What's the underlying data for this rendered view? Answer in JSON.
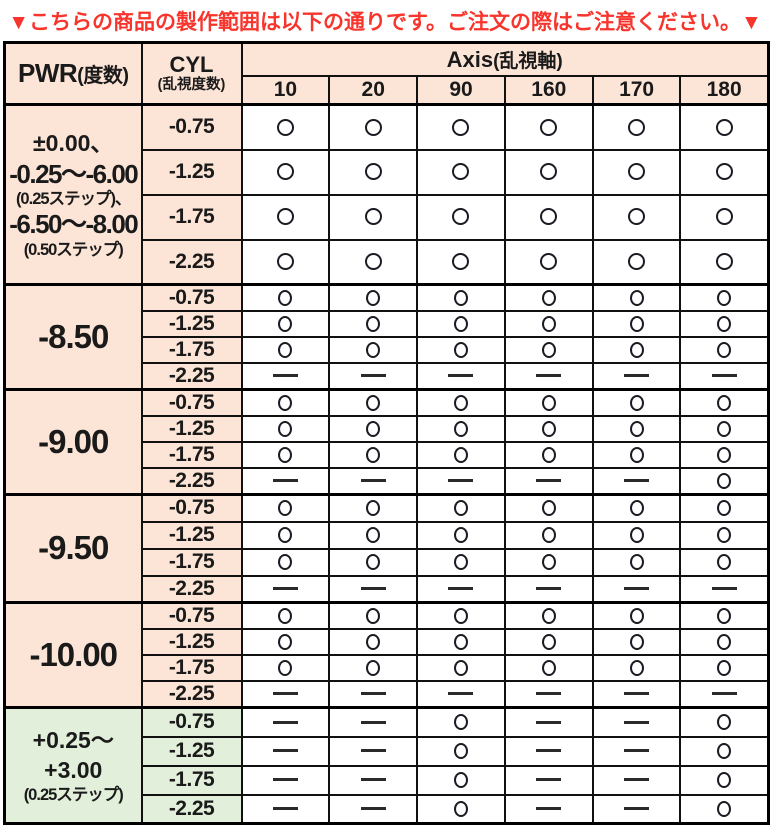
{
  "notice": {
    "text": "▼こちらの商品の製作範囲は以下の通りです。ご注文の際はご注意ください。▼",
    "color": "#f8352d"
  },
  "table": {
    "headers": {
      "pwr": "PWR",
      "pwr_sub": "(度数)",
      "cyl": "CYL",
      "cyl_sub": "(乱視度数)",
      "axis": "Axis",
      "axis_sub": "(乱視軸)"
    },
    "axis_values": [
      "10",
      "20",
      "90",
      "160",
      "170",
      "180"
    ],
    "symbols": {
      "available": "○",
      "unavailable": "—"
    },
    "groups": [
      {
        "theme": "peach",
        "row_class": "rh-g1",
        "pwr_lines": [
          {
            "text": "±0.00、",
            "size": "md"
          },
          {
            "text": "-0.25〜-6.00",
            "size": "lg"
          },
          {
            "text": "(0.25ステップ)、",
            "size": "sm"
          },
          {
            "text": "-6.50〜-8.00",
            "size": "lg"
          },
          {
            "text": "(0.50ステップ)",
            "size": "sm"
          }
        ],
        "rows": [
          {
            "cyl": "-0.75",
            "cells": [
              "o",
              "o",
              "o",
              "o",
              "o",
              "o"
            ]
          },
          {
            "cyl": "-1.25",
            "cells": [
              "o",
              "o",
              "o",
              "o",
              "o",
              "o"
            ]
          },
          {
            "cyl": "-1.75",
            "cells": [
              "o",
              "o",
              "o",
              "o",
              "o",
              "o"
            ]
          },
          {
            "cyl": "-2.25",
            "cells": [
              "o",
              "o",
              "o",
              "o",
              "o",
              "o"
            ]
          }
        ]
      },
      {
        "theme": "peach",
        "row_class": "rh-sm",
        "pwr_lines": [
          {
            "text": "-8.50",
            "size": "xl"
          }
        ],
        "rows": [
          {
            "cyl": "-0.75",
            "cells": [
              "o",
              "o",
              "o",
              "o",
              "o",
              "o"
            ]
          },
          {
            "cyl": "-1.25",
            "cells": [
              "o",
              "o",
              "o",
              "o",
              "o",
              "o"
            ]
          },
          {
            "cyl": "-1.75",
            "cells": [
              "o",
              "o",
              "o",
              "o",
              "o",
              "o"
            ]
          },
          {
            "cyl": "-2.25",
            "cells": [
              "-",
              "-",
              "-",
              "-",
              "-",
              "-"
            ]
          }
        ]
      },
      {
        "theme": "peach",
        "row_class": "rh-sm",
        "pwr_lines": [
          {
            "text": "-9.00",
            "size": "xl"
          }
        ],
        "rows": [
          {
            "cyl": "-0.75",
            "cells": [
              "o",
              "o",
              "o",
              "o",
              "o",
              "o"
            ]
          },
          {
            "cyl": "-1.25",
            "cells": [
              "o",
              "o",
              "o",
              "o",
              "o",
              "o"
            ]
          },
          {
            "cyl": "-1.75",
            "cells": [
              "o",
              "o",
              "o",
              "o",
              "o",
              "o"
            ]
          },
          {
            "cyl": "-2.25",
            "cells": [
              "-",
              "-",
              "-",
              "-",
              "-",
              "o"
            ]
          }
        ]
      },
      {
        "theme": "peach",
        "row_class": "rh-md",
        "pwr_lines": [
          {
            "text": "-9.50",
            "size": "xl"
          }
        ],
        "rows": [
          {
            "cyl": "-0.75",
            "cells": [
              "o",
              "o",
              "o",
              "o",
              "o",
              "o"
            ]
          },
          {
            "cyl": "-1.25",
            "cells": [
              "o",
              "o",
              "o",
              "o",
              "o",
              "o"
            ]
          },
          {
            "cyl": "-1.75",
            "cells": [
              "o",
              "o",
              "o",
              "o",
              "o",
              "o"
            ]
          },
          {
            "cyl": "-2.25",
            "cells": [
              "-",
              "-",
              "-",
              "-",
              "-",
              "-"
            ]
          }
        ]
      },
      {
        "theme": "peach",
        "row_class": "rh-sm",
        "pwr_lines": [
          {
            "text": "-10.00",
            "size": "xl"
          }
        ],
        "rows": [
          {
            "cyl": "-0.75",
            "cells": [
              "o",
              "o",
              "o",
              "o",
              "o",
              "o"
            ]
          },
          {
            "cyl": "-1.25",
            "cells": [
              "o",
              "o",
              "o",
              "o",
              "o",
              "o"
            ]
          },
          {
            "cyl": "-1.75",
            "cells": [
              "o",
              "o",
              "o",
              "o",
              "o",
              "o"
            ]
          },
          {
            "cyl": "-2.25",
            "cells": [
              "-",
              "-",
              "-",
              "-",
              "-",
              "-"
            ]
          }
        ]
      },
      {
        "theme": "green",
        "row_class": "rh-g6",
        "pwr_lines": [
          {
            "text": "+0.25〜",
            "size": "md"
          },
          {
            "text": "+3.00",
            "size": "md"
          },
          {
            "text": "(0.25ステップ)",
            "size": "sm"
          }
        ],
        "rows": [
          {
            "cyl": "-0.75",
            "cells": [
              "-",
              "-",
              "o",
              "-",
              "-",
              "o"
            ]
          },
          {
            "cyl": "-1.25",
            "cells": [
              "-",
              "-",
              "o",
              "-",
              "-",
              "o"
            ]
          },
          {
            "cyl": "-1.75",
            "cells": [
              "-",
              "-",
              "o",
              "-",
              "-",
              "o"
            ]
          },
          {
            "cyl": "-2.25",
            "cells": [
              "-",
              "-",
              "o",
              "-",
              "-",
              "o"
            ]
          }
        ]
      }
    ]
  },
  "colors": {
    "peach": "#fce4d6",
    "green": "#e2efda",
    "red": "#f8352d",
    "grid": "#111111",
    "text": "#1a1a1a"
  }
}
